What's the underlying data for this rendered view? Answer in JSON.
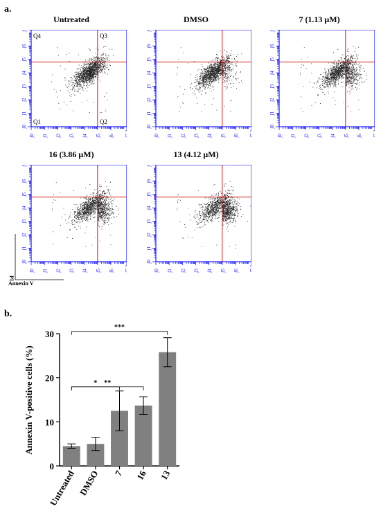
{
  "panel_a_label": "a.",
  "panel_b_label": "b.",
  "quadrants": {
    "q1": "Q1",
    "q2": "Q2",
    "q3": "Q3",
    "q4": "Q4"
  },
  "axis_legend": {
    "y": "PI",
    "x": "Annexin V"
  },
  "chart_data": [
    {
      "type": "scatter",
      "panels": [
        {
          "title": "Untreated"
        },
        {
          "title": "DMSO"
        },
        {
          "title": "7 (1.13 μM)"
        },
        {
          "title": "16 (3.86 μM)"
        },
        {
          "title": "13 (4.12 μM)"
        }
      ],
      "x_ticks": [
        "10^0",
        "10^1",
        "10^2",
        "10^3",
        "10^4",
        "10^5",
        "10^6",
        "10^7.2"
      ],
      "y_ticks": [
        "10^0",
        "10^1",
        "10^2",
        "10^3",
        "10^4",
        "10^5",
        "10^6",
        "10^7.2"
      ],
      "x_tick_labels": [
        "ʃ0",
        "ʃ1",
        "ʃ2",
        "ʃ3",
        "ʃ4",
        "ʃ5",
        "ʃ6",
        "ʃ7.2"
      ],
      "gate": {
        "x": 5.0,
        "y": 4.8
      },
      "xlim": [
        0,
        7.2
      ],
      "ylim": [
        0,
        7.2
      ],
      "xlabel": "Annexin V",
      "ylabel": "PI"
    },
    {
      "type": "bar",
      "categories": [
        "Untreated",
        "DMSO",
        "7",
        "16",
        "13"
      ],
      "values": [
        4.5,
        5.0,
        12.5,
        13.7,
        25.8
      ],
      "errors": [
        0.5,
        1.5,
        4.5,
        2.0,
        3.3
      ],
      "ylabel": "Annexin V-positive cells (%)",
      "ylim": [
        0,
        30
      ],
      "yticks": [
        0,
        10,
        20,
        30
      ],
      "color": "#808080",
      "significance": [
        {
          "from": 0,
          "to": 2,
          "label": "*"
        },
        {
          "from": 0,
          "to": 3,
          "label": "**"
        },
        {
          "from": 0,
          "to": 4,
          "label": "***"
        }
      ]
    }
  ]
}
